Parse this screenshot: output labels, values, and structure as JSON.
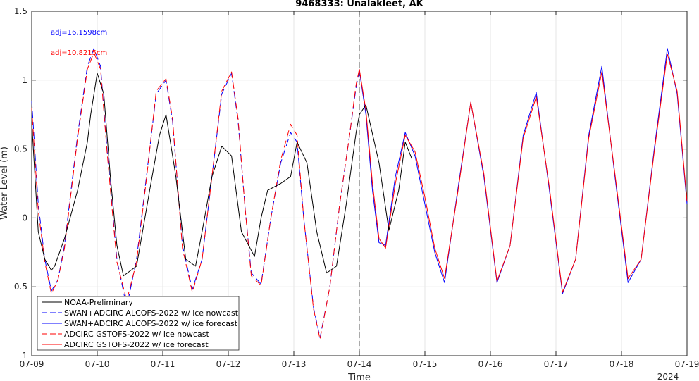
{
  "chart_data": {
    "type": "line",
    "title": "9468333: Unalakleet, AK",
    "xlabel": "Time",
    "ylabel": "Water Level (m)",
    "xlim": [
      0,
      10
    ],
    "ylim": [
      -1,
      1.5
    ],
    "x_ticks": [
      0,
      1,
      2,
      3,
      4,
      5,
      6,
      7,
      8,
      9,
      10
    ],
    "x_tick_labels": [
      "07-09",
      "07-10",
      "07-11",
      "07-12",
      "07-13",
      "07-14",
      "07-15",
      "07-16",
      "07-17",
      "07-18",
      "07-19"
    ],
    "x_year_label": "2024",
    "y_ticks": [
      -1,
      -0.5,
      0,
      0.5,
      1,
      1.5
    ],
    "y_tick_labels": [
      "-1",
      "-0.5",
      "0",
      "0.5",
      "1",
      "1.5"
    ],
    "grid": true,
    "legend_position": "bottom-left",
    "nowcast_forecast_divider_x": 5,
    "annotations": [
      {
        "text": "adj=16.1598cm",
        "color": "#0000ff"
      },
      {
        "text": "adj=10.8215cm",
        "color": "#ff0000"
      }
    ],
    "series": [
      {
        "name": "NOAA-Preliminary",
        "color": "#000000",
        "dash": "solid",
        "x": [
          0,
          0.1,
          0.2,
          0.3,
          0.35,
          0.5,
          0.7,
          0.85,
          0.9,
          1.0,
          1.1,
          1.2,
          1.3,
          1.4,
          1.6,
          1.8,
          1.95,
          2.05,
          2.2,
          2.35,
          2.5,
          2.6,
          2.75,
          2.9,
          3.05,
          3.2,
          3.4,
          3.5,
          3.6,
          3.8,
          3.95,
          4.05,
          4.2,
          4.35,
          4.5,
          4.65,
          4.8,
          4.95,
          5.0,
          5.1,
          5.3,
          5.45,
          5.6,
          5.7,
          5.8
        ],
        "y": [
          0.7,
          -0.1,
          -0.3,
          -0.38,
          -0.35,
          -0.15,
          0.2,
          0.55,
          0.75,
          1.05,
          0.9,
          0.3,
          -0.2,
          -0.42,
          -0.35,
          0.2,
          0.6,
          0.75,
          0.3,
          -0.3,
          -0.35,
          -0.1,
          0.3,
          0.52,
          0.45,
          -0.1,
          -0.28,
          0.0,
          0.2,
          0.25,
          0.3,
          0.55,
          0.4,
          -0.1,
          -0.4,
          -0.35,
          0.1,
          0.62,
          0.75,
          0.82,
          0.4,
          -0.09,
          0.2,
          0.55,
          0.43
        ]
      },
      {
        "name": "SWAN+ADCIRC ALCOFS-2022 w/ ice nowcast",
        "color": "#0000ff",
        "dash": "dashed",
        "x": [
          0,
          0.1,
          0.2,
          0.3,
          0.4,
          0.5,
          0.6,
          0.7,
          0.85,
          0.95,
          1.05,
          1.15,
          1.3,
          1.45,
          1.6,
          1.75,
          1.9,
          2.05,
          2.15,
          2.3,
          2.45,
          2.6,
          2.75,
          2.9,
          3.05,
          3.15,
          3.25,
          3.35,
          3.5,
          3.65,
          3.8,
          3.95,
          4.05,
          4.15,
          4.3,
          4.4,
          4.55,
          4.7,
          4.85,
          4.95,
          5.0
        ],
        "y": [
          0.85,
          0.1,
          -0.3,
          -0.53,
          -0.45,
          -0.2,
          0.2,
          0.6,
          1.1,
          1.23,
          1.1,
          0.5,
          -0.3,
          -0.65,
          -0.3,
          0.3,
          0.9,
          1.0,
          0.7,
          -0.2,
          -0.52,
          -0.3,
          0.3,
          0.9,
          1.05,
          0.7,
          0.1,
          -0.4,
          -0.48,
          0.0,
          0.4,
          0.62,
          0.55,
          0.0,
          -0.65,
          -0.87,
          -0.5,
          0.1,
          0.6,
          0.95,
          1.07
        ]
      },
      {
        "name": "SWAN+ADCIRC ALCOFS-2022 w/ ice forecast",
        "color": "#0000ff",
        "dash": "solid",
        "x": [
          5.0,
          5.1,
          5.2,
          5.3,
          5.4,
          5.55,
          5.7,
          5.85,
          6.0,
          6.15,
          6.3,
          6.5,
          6.7,
          6.9,
          7.1,
          7.3,
          7.5,
          7.7,
          7.9,
          8.1,
          8.3,
          8.5,
          8.7,
          8.9,
          9.1,
          9.3,
          9.5,
          9.7,
          9.85,
          10.0
        ],
        "y": [
          1.07,
          0.75,
          0.2,
          -0.18,
          -0.2,
          0.3,
          0.62,
          0.45,
          0.1,
          -0.25,
          -0.47,
          0.2,
          0.84,
          0.3,
          -0.47,
          -0.2,
          0.6,
          0.91,
          0.2,
          -0.55,
          -0.3,
          0.6,
          1.1,
          0.3,
          -0.47,
          -0.3,
          0.5,
          1.23,
          0.9,
          0.1
        ]
      },
      {
        "name": "ADCIRC GSTOFS-2022 w/ ice nowcast",
        "color": "#ff0000",
        "dash": "dashed",
        "x": [
          0,
          0.1,
          0.2,
          0.3,
          0.4,
          0.5,
          0.6,
          0.7,
          0.85,
          0.95,
          1.05,
          1.15,
          1.3,
          1.45,
          1.6,
          1.75,
          1.9,
          2.05,
          2.15,
          2.3,
          2.45,
          2.6,
          2.75,
          2.9,
          3.05,
          3.15,
          3.25,
          3.35,
          3.5,
          3.65,
          3.8,
          3.95,
          4.05,
          4.15,
          4.3,
          4.4,
          4.55,
          4.7,
          4.85,
          4.95,
          5.0
        ],
        "y": [
          0.8,
          0.05,
          -0.32,
          -0.55,
          -0.45,
          -0.22,
          0.18,
          0.58,
          1.08,
          1.2,
          1.08,
          0.48,
          -0.32,
          -0.6,
          -0.32,
          0.28,
          0.92,
          1.01,
          0.72,
          -0.22,
          -0.54,
          -0.3,
          0.3,
          0.92,
          1.06,
          0.72,
          0.1,
          -0.42,
          -0.49,
          0.0,
          0.42,
          0.68,
          0.6,
          0.0,
          -0.66,
          -0.88,
          -0.5,
          0.1,
          0.6,
          0.97,
          1.08
        ]
      },
      {
        "name": "ADCIRC GSTOFS-2022 w/ ice forecast",
        "color": "#ff0000",
        "dash": "solid",
        "x": [
          5.0,
          5.1,
          5.2,
          5.3,
          5.4,
          5.55,
          5.7,
          5.85,
          6.0,
          6.15,
          6.3,
          6.5,
          6.7,
          6.9,
          7.1,
          7.3,
          7.5,
          7.7,
          7.9,
          8.1,
          8.3,
          8.5,
          8.7,
          8.9,
          9.1,
          9.3,
          9.5,
          9.7,
          9.85,
          10.0
        ],
        "y": [
          1.08,
          0.78,
          0.25,
          -0.15,
          -0.22,
          0.25,
          0.6,
          0.48,
          0.15,
          -0.22,
          -0.44,
          0.18,
          0.84,
          0.32,
          -0.46,
          -0.2,
          0.58,
          0.88,
          0.22,
          -0.54,
          -0.3,
          0.58,
          1.06,
          0.32,
          -0.44,
          -0.3,
          0.48,
          1.19,
          0.92,
          0.12
        ]
      }
    ]
  }
}
